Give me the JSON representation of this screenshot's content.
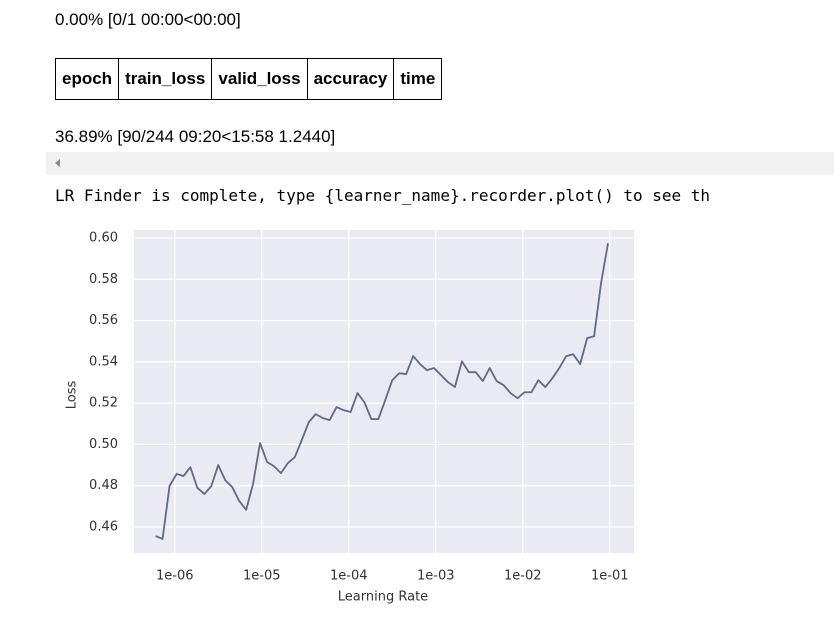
{
  "output": {
    "progress_1": "0.00% [0/1 00:00<00:00]",
    "table_headers": [
      "epoch",
      "train_loss",
      "valid_loss",
      "accuracy",
      "time"
    ],
    "progress_2": "36.89% [90/244 09:20<15:58 1.2440]",
    "log": "LR Finder is complete, type {learner_name}.recorder.plot() to see th"
  },
  "chart_data": {
    "type": "line",
    "xlabel": "Learning Rate",
    "ylabel": "Loss",
    "xscale": "log",
    "grid": true,
    "color": "#5f6a85",
    "x": [
      6.03e-07,
      7.24e-07,
      8.71e-07,
      1.05e-06,
      1.26e-06,
      1.51e-06,
      1.82e-06,
      2.19e-06,
      2.63e-06,
      3.16e-06,
      3.8e-06,
      4.57e-06,
      5.5e-06,
      6.61e-06,
      7.94e-06,
      9.55e-06,
      1.15e-05,
      1.38e-05,
      1.66e-05,
      2e-05,
      2.4e-05,
      2.88e-05,
      3.47e-05,
      4.17e-05,
      5.01e-05,
      6.03e-05,
      7.24e-05,
      8.71e-05,
      0.000105,
      0.000126,
      0.000151,
      0.000182,
      0.000219,
      0.000263,
      0.000316,
      0.00038,
      0.000457,
      0.00055,
      0.000661,
      0.000794,
      0.000955,
      0.00115,
      0.00138,
      0.00166,
      0.002,
      0.0024,
      0.00288,
      0.00347,
      0.00417,
      0.00501,
      0.00603,
      0.00724,
      0.00871,
      0.0105,
      0.0126,
      0.0151,
      0.0182,
      0.0219,
      0.0263,
      0.0316,
      0.038,
      0.0457,
      0.055,
      0.0661,
      0.0794,
      0.0955
    ],
    "values": [
      0.4556,
      0.4542,
      0.4798,
      0.4857,
      0.4847,
      0.489,
      0.4789,
      0.476,
      0.4798,
      0.49,
      0.4827,
      0.4794,
      0.4726,
      0.4683,
      0.4808,
      0.5007,
      0.4915,
      0.4895,
      0.4861,
      0.491,
      0.4939,
      0.5021,
      0.5108,
      0.5147,
      0.5128,
      0.5118,
      0.5181,
      0.5166,
      0.5157,
      0.5249,
      0.5205,
      0.5123,
      0.5123,
      0.5215,
      0.5311,
      0.5345,
      0.5341,
      0.5428,
      0.5389,
      0.536,
      0.537,
      0.5336,
      0.5302,
      0.5278,
      0.5403,
      0.535,
      0.535,
      0.5307,
      0.537,
      0.5307,
      0.5287,
      0.5249,
      0.5224,
      0.5253,
      0.5253,
      0.5311,
      0.5278,
      0.5321,
      0.537,
      0.5428,
      0.5437,
      0.5389,
      0.5515,
      0.5524,
      0.5781,
      0.5975
    ],
    "xlim": [
      3.4e-07,
      0.19
    ],
    "xticks": [
      {
        "value": 1e-06,
        "label": "1e-06"
      },
      {
        "value": 1e-05,
        "label": "1e-05"
      },
      {
        "value": 0.0001,
        "label": "1e-04"
      },
      {
        "value": 0.001,
        "label": "1e-03"
      },
      {
        "value": 0.01,
        "label": "1e-02"
      },
      {
        "value": 0.1,
        "label": "1e-01"
      }
    ],
    "ylim": [
      0.4474,
      0.6039
    ],
    "yticks": [
      0.46,
      0.48,
      {
        "value": 0.5,
        "label": "0.50"
      },
      0.52,
      0.54,
      0.56,
      0.58,
      {
        "value": 0.6,
        "label": "0.60"
      }
    ]
  }
}
